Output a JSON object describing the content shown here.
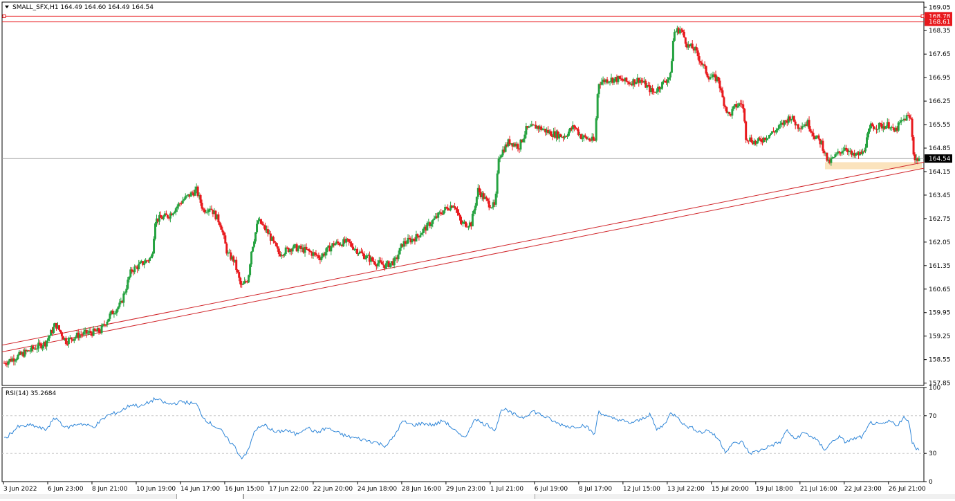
{
  "header": {
    "symbol_line": "SMALL_SFX,H1  164.49 164.60 164.49 164.54",
    "menu_icon": "triangle-down-icon"
  },
  "colors": {
    "bull": "#26a341",
    "bear": "#e8191d",
    "level_line": "#e8191d",
    "trend_line": "#d1262b",
    "price_label_bg": "#e8191d",
    "rsi_line": "#2f86d8",
    "zone_fill": "#fbe3bd",
    "grid": "#c8c8c8"
  },
  "price_axis": {
    "ticks": [
      "169.05",
      "168.35",
      "167.65",
      "166.95",
      "166.25",
      "165.55",
      "164.85",
      "164.15",
      "163.45",
      "162.75",
      "162.05",
      "161.35",
      "160.65",
      "159.95",
      "159.25",
      "158.55",
      "157.85"
    ],
    "ylim": [
      157.78,
      169.2
    ]
  },
  "levels": [
    {
      "name": "resistance-upper",
      "value": 168.78,
      "label": "168.78"
    },
    {
      "name": "resistance-lower",
      "value": 168.61,
      "label": "168.61"
    }
  ],
  "current_price": {
    "value": 164.54,
    "label": "164.54"
  },
  "time_axis": {
    "labels": [
      "3 Jun 2022",
      "6 Jun 23:00",
      "8 Jun 21:00",
      "10 Jun 19:00",
      "14 Jun 17:00",
      "16 Jun 15:00",
      "17 Jun 22:00",
      "22 Jun 20:00",
      "24 Jun 18:00",
      "28 Jun 16:00",
      "29 Jun 23:00",
      "1 Jul 21:00",
      "6 Jul 19:00",
      "8 Jul 17:00",
      "12 Jul 15:00",
      "13 Jul 22:00",
      "15 Jul 20:00",
      "19 Jul 18:00",
      "21 Jul 16:00",
      "22 Jul 23:00",
      "26 Jul 21:00"
    ]
  },
  "rsi": {
    "label": "RSI(14) 35.2684",
    "ticks": [
      "100",
      "70",
      "30",
      "0"
    ],
    "levels": [
      70,
      30
    ],
    "ylim": [
      0,
      100
    ]
  },
  "chart_data": {
    "type": "candlestick",
    "symbol": "SMALL_SFX",
    "timeframe": "H1",
    "last_bar": {
      "open": 164.49,
      "high": 164.6,
      "low": 164.49,
      "close": 164.54
    },
    "close_path": [
      [
        0,
        158.45
      ],
      [
        30,
        158.75
      ],
      [
        60,
        159.05
      ],
      [
        75,
        159.6
      ],
      [
        90,
        159.1
      ],
      [
        110,
        159.3
      ],
      [
        140,
        159.4
      ],
      [
        155,
        159.9
      ],
      [
        170,
        160.2
      ],
      [
        185,
        161.2
      ],
      [
        200,
        161.4
      ],
      [
        215,
        161.6
      ],
      [
        220,
        162.7
      ],
      [
        240,
        162.85
      ],
      [
        260,
        163.3
      ],
      [
        280,
        163.6
      ],
      [
        290,
        163.0
      ],
      [
        300,
        163.1
      ],
      [
        315,
        162.6
      ],
      [
        325,
        161.7
      ],
      [
        335,
        161.5
      ],
      [
        345,
        160.7
      ],
      [
        355,
        160.95
      ],
      [
        360,
        161.8
      ],
      [
        370,
        162.7
      ],
      [
        385,
        162.3
      ],
      [
        400,
        161.7
      ],
      [
        420,
        161.9
      ],
      [
        440,
        161.8
      ],
      [
        460,
        161.6
      ],
      [
        480,
        162.0
      ],
      [
        500,
        162.05
      ],
      [
        520,
        161.7
      ],
      [
        540,
        161.45
      ],
      [
        555,
        161.35
      ],
      [
        570,
        161.5
      ],
      [
        580,
        162.0
      ],
      [
        600,
        162.2
      ],
      [
        620,
        162.6
      ],
      [
        640,
        163.0
      ],
      [
        655,
        163.2
      ],
      [
        665,
        162.6
      ],
      [
        680,
        162.6
      ],
      [
        690,
        163.6
      ],
      [
        705,
        163.2
      ],
      [
        715,
        163.1
      ],
      [
        720,
        164.6
      ],
      [
        735,
        165.05
      ],
      [
        750,
        164.9
      ],
      [
        760,
        165.4
      ],
      [
        775,
        165.5
      ],
      [
        795,
        165.3
      ],
      [
        815,
        165.2
      ],
      [
        830,
        165.5
      ],
      [
        840,
        165.2
      ],
      [
        860,
        165.05
      ],
      [
        865,
        166.8
      ],
      [
        880,
        166.9
      ],
      [
        895,
        166.9
      ],
      [
        910,
        166.8
      ],
      [
        925,
        166.9
      ],
      [
        935,
        166.7
      ],
      [
        945,
        166.5
      ],
      [
        955,
        166.7
      ],
      [
        970,
        167.0
      ],
      [
        975,
        168.3
      ],
      [
        985,
        168.4
      ],
      [
        995,
        167.9
      ],
      [
        1005,
        167.8
      ],
      [
        1015,
        167.4
      ],
      [
        1025,
        167.0
      ],
      [
        1040,
        166.9
      ],
      [
        1045,
        166.4
      ],
      [
        1055,
        165.8
      ],
      [
        1065,
        166.1
      ],
      [
        1075,
        166.2
      ],
      [
        1080,
        165.2
      ],
      [
        1095,
        165.0
      ],
      [
        1110,
        165.2
      ],
      [
        1125,
        165.4
      ],
      [
        1135,
        165.6
      ],
      [
        1145,
        165.8
      ],
      [
        1155,
        165.5
      ],
      [
        1170,
        165.6
      ],
      [
        1180,
        165.2
      ],
      [
        1190,
        165.0
      ],
      [
        1200,
        164.4
      ],
      [
        1215,
        164.7
      ],
      [
        1225,
        164.9
      ],
      [
        1235,
        164.6
      ],
      [
        1250,
        164.7
      ],
      [
        1262,
        165.5
      ],
      [
        1275,
        165.5
      ],
      [
        1290,
        165.55
      ],
      [
        1295,
        165.3
      ],
      [
        1305,
        165.6
      ],
      [
        1315,
        165.8
      ],
      [
        1320,
        165.7
      ],
      [
        1325,
        164.5
      ],
      [
        1332,
        164.54
      ]
    ],
    "rsi_path": [
      [
        0,
        45
      ],
      [
        20,
        58
      ],
      [
        40,
        60
      ],
      [
        60,
        55
      ],
      [
        75,
        68
      ],
      [
        90,
        57
      ],
      [
        110,
        62
      ],
      [
        130,
        58
      ],
      [
        150,
        70
      ],
      [
        170,
        75
      ],
      [
        185,
        82
      ],
      [
        200,
        80
      ],
      [
        220,
        88
      ],
      [
        240,
        82
      ],
      [
        260,
        85
      ],
      [
        280,
        82
      ],
      [
        290,
        68
      ],
      [
        300,
        62
      ],
      [
        315,
        55
      ],
      [
        325,
        45
      ],
      [
        335,
        38
      ],
      [
        345,
        25
      ],
      [
        355,
        32
      ],
      [
        365,
        55
      ],
      [
        380,
        60
      ],
      [
        395,
        52
      ],
      [
        410,
        55
      ],
      [
        425,
        50
      ],
      [
        440,
        58
      ],
      [
        455,
        52
      ],
      [
        470,
        57
      ],
      [
        485,
        52
      ],
      [
        500,
        48
      ],
      [
        520,
        45
      ],
      [
        540,
        42
      ],
      [
        555,
        38
      ],
      [
        565,
        45
      ],
      [
        580,
        64
      ],
      [
        595,
        60
      ],
      [
        610,
        62
      ],
      [
        625,
        60
      ],
      [
        640,
        65
      ],
      [
        655,
        55
      ],
      [
        665,
        48
      ],
      [
        675,
        50
      ],
      [
        685,
        68
      ],
      [
        695,
        62
      ],
      [
        705,
        60
      ],
      [
        715,
        55
      ],
      [
        725,
        78
      ],
      [
        740,
        72
      ],
      [
        755,
        68
      ],
      [
        770,
        75
      ],
      [
        790,
        68
      ],
      [
        805,
        62
      ],
      [
        825,
        58
      ],
      [
        845,
        60
      ],
      [
        860,
        50
      ],
      [
        865,
        75
      ],
      [
        880,
        68
      ],
      [
        895,
        66
      ],
      [
        910,
        62
      ],
      [
        925,
        65
      ],
      [
        940,
        72
      ],
      [
        950,
        55
      ],
      [
        960,
        60
      ],
      [
        970,
        72
      ],
      [
        980,
        70
      ],
      [
        990,
        60
      ],
      [
        1005,
        56
      ],
      [
        1015,
        52
      ],
      [
        1025,
        55
      ],
      [
        1040,
        45
      ],
      [
        1050,
        32
      ],
      [
        1060,
        40
      ],
      [
        1075,
        42
      ],
      [
        1085,
        30
      ],
      [
        1100,
        33
      ],
      [
        1115,
        38
      ],
      [
        1130,
        42
      ],
      [
        1140,
        55
      ],
      [
        1150,
        45
      ],
      [
        1165,
        52
      ],
      [
        1180,
        46
      ],
      [
        1195,
        34
      ],
      [
        1205,
        42
      ],
      [
        1215,
        48
      ],
      [
        1225,
        42
      ],
      [
        1235,
        45
      ],
      [
        1250,
        48
      ],
      [
        1262,
        63
      ],
      [
        1275,
        60
      ],
      [
        1290,
        64
      ],
      [
        1300,
        60
      ],
      [
        1310,
        68
      ],
      [
        1318,
        62
      ],
      [
        1322,
        42
      ],
      [
        1328,
        35.27
      ]
    ]
  }
}
